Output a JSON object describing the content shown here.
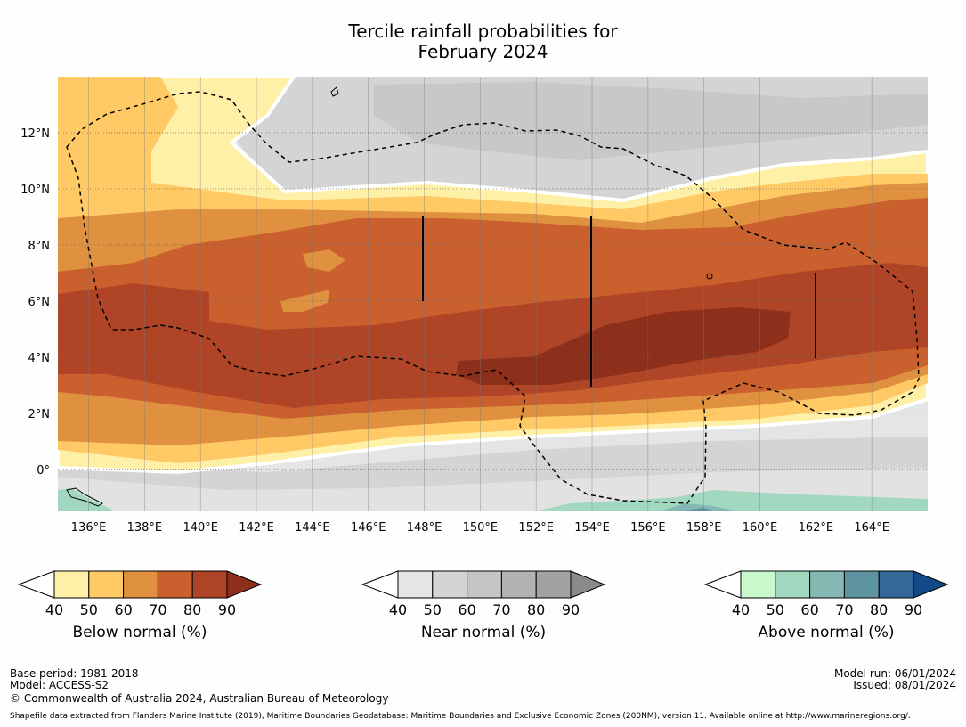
{
  "title": {
    "line1": "Tercile rainfall probabilities for",
    "line2": "February 2024"
  },
  "map": {
    "lon_labels": [
      "136°E",
      "138°E",
      "140°E",
      "142°E",
      "144°E",
      "146°E",
      "148°E",
      "150°E",
      "152°E",
      "154°E",
      "156°E",
      "158°E",
      "160°E",
      "162°E",
      "164°E"
    ],
    "lat_labels": [
      "12°N",
      "10°N",
      "8°N",
      "6°N",
      "4°N",
      "2°N",
      "0°"
    ],
    "lon_range": [
      134.9,
      166.0
    ],
    "lat_range": [
      -1.5,
      14.0
    ]
  },
  "colors": {
    "below": [
      "#fff0a8",
      "#ffc966",
      "#e0913f",
      "#c9602e",
      "#af4526",
      "#8c2f1b"
    ],
    "near": [
      "#e5e5e5",
      "#d4d4d4",
      "#c5c5c5",
      "#b2b2b2",
      "#a2a2a2",
      "#8a8a8a"
    ],
    "above": [
      "#c8f8cc",
      "#a2d8c0",
      "#84b8b2",
      "#5e93a2",
      "#336897",
      "#124a88"
    ]
  },
  "colorbars": {
    "ticks": [
      "40",
      "50",
      "60",
      "70",
      "80",
      "90"
    ],
    "below_label": "Below normal (%)",
    "near_label": "Near normal (%)",
    "above_label": "Above normal (%)"
  },
  "footer": {
    "base_period": "Base period: 1981-2018",
    "model": "Model: ACCESS-S2",
    "copyright": "© Commonwealth of Australia 2024, Australian Bureau of Meteorology",
    "model_run": "Model run: 06/01/2024",
    "issued": "Issued: 08/01/2024",
    "shapefile": "Shapefile data extracted from Flanders Marine Institute (2019), Maritime Boundaries Geodatabase: Maritime Boundaries and Exclusive Economic Zones (200NM), version 11. Available online at http://www.marineregions.org/."
  }
}
